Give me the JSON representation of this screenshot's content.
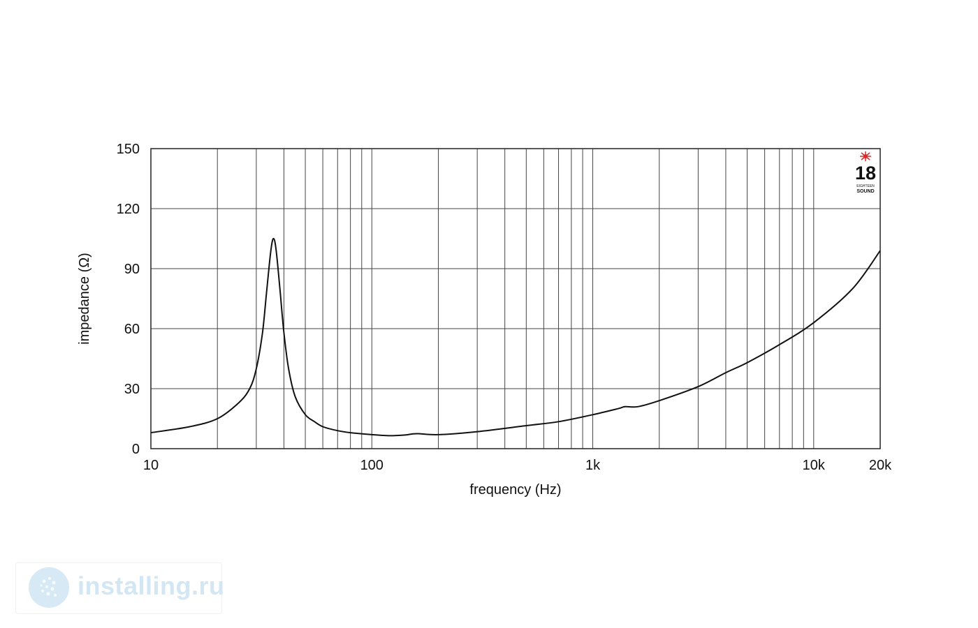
{
  "chart_data": {
    "type": "line",
    "xlabel": "frequency (Hz)",
    "ylabel": "impedance (Ω)",
    "xscale": "log",
    "xlim": [
      10,
      20000
    ],
    "ylim": [
      0,
      150
    ],
    "x_ticks": [
      {
        "value": 10,
        "label": "10"
      },
      {
        "value": 100,
        "label": "100"
      },
      {
        "value": 1000,
        "label": "1k"
      },
      {
        "value": 10000,
        "label": "10k"
      },
      {
        "value": 20000,
        "label": "20k"
      }
    ],
    "y_ticks": [
      0,
      30,
      60,
      90,
      120,
      150
    ],
    "grid": true,
    "series": [
      {
        "x": [
          10,
          15,
          20,
          25,
          28,
          30,
          32,
          33.5,
          35,
          36,
          37,
          38.5,
          40,
          42,
          45,
          50,
          55,
          60,
          70,
          80,
          100,
          120,
          140,
          160,
          200,
          300,
          500,
          700,
          1000,
          1300,
          1400,
          1600,
          2000,
          3000,
          4000,
          5000,
          7000,
          10000,
          15000,
          20000
        ],
        "y": [
          8,
          11,
          15,
          23,
          30,
          40,
          58,
          80,
          100,
          105,
          98,
          78,
          58,
          40,
          26,
          17,
          13.5,
          11,
          9,
          8,
          7,
          6.5,
          6.8,
          7.5,
          7,
          8.5,
          11.5,
          13.5,
          17,
          20,
          21,
          21,
          24,
          31,
          38,
          43,
          52,
          63,
          80,
          99
        ]
      }
    ]
  },
  "logo": {
    "number": "18",
    "line1": "EIGHTEEN",
    "line2": "SOUND",
    "accent_color": "#d62b2b"
  },
  "watermark": {
    "text": "installing.ru",
    "color": "#d2e6f3"
  }
}
